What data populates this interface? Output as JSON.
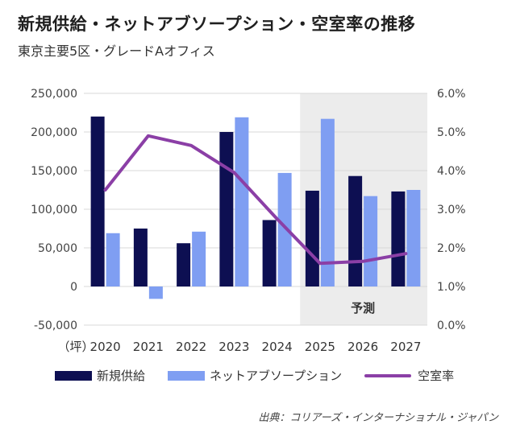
{
  "title": "新規供給・ネットアブソープション・空室率の推移",
  "subtitle": "東京主要5区・グレードAオフィス",
  "source": "出典：コリアーズ・インターナショナル・ジャパン",
  "colors": {
    "supply": "#0d0f52",
    "absorption": "#7f9ef2",
    "vacancy": "#8b3fa6",
    "forecast_bg": "#ececec",
    "grid": "#d9d9d9"
  },
  "chart_data": {
    "type": "bar",
    "categories": [
      "2020",
      "2021",
      "2022",
      "2023",
      "2024",
      "2025",
      "2026",
      "2027"
    ],
    "x_unit_label": "（坪）",
    "y_left": {
      "range": [
        -50000,
        250000
      ],
      "ticks": [
        -50000,
        0,
        50000,
        100000,
        150000,
        200000,
        250000
      ],
      "tick_labels": [
        "-50,000",
        "0",
        "50,000",
        "100,000",
        "150,000",
        "200,000",
        "250,000"
      ]
    },
    "y_right": {
      "range": [
        0,
        6
      ],
      "ticks": [
        0,
        1,
        2,
        3,
        4,
        5,
        6
      ],
      "tick_labels": [
        "0.0%",
        "1.0%",
        "2.0%",
        "3.0%",
        "4.0%",
        "5.0%",
        "6.0%"
      ]
    },
    "series": [
      {
        "name": "新規供給",
        "type": "bar",
        "axis": "left",
        "values": [
          220000,
          75000,
          56000,
          200000,
          86000,
          124000,
          143000,
          123000
        ]
      },
      {
        "name": "ネットアブソープション",
        "type": "bar",
        "axis": "left",
        "values": [
          69000,
          -16000,
          71000,
          219000,
          147000,
          217000,
          117000,
          125000
        ]
      },
      {
        "name": "空室率",
        "type": "line",
        "axis": "right",
        "values": [
          3.5,
          4.9,
          4.65,
          3.95,
          2.75,
          1.6,
          1.65,
          1.85
        ]
      }
    ],
    "forecast": {
      "label": "予測",
      "from": "2025",
      "to": "2027"
    },
    "grid": "horizontal",
    "legend_position": "bottom"
  }
}
